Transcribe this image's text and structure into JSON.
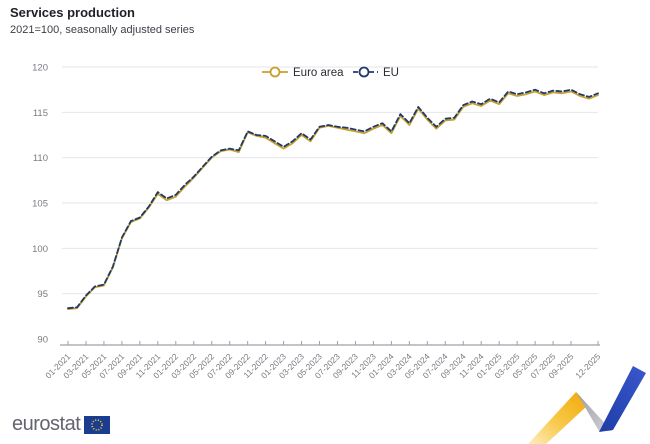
{
  "header": {
    "title": "Services production",
    "subtitle": "2021=100, seasonally adjusted series"
  },
  "footer": {
    "logo_text": "eurostat",
    "flag_color": "#1b3d91",
    "star_color": "#ffd617"
  },
  "colors": {
    "euro_area_line": "#c7a12b",
    "eu_line": "#223a6a",
    "gridline": "#e4e5eb",
    "axis": "#9ca1a9",
    "tick_label": "#7b7b83",
    "legend_text": "#2b2b33"
  },
  "chart_data": {
    "type": "line",
    "title": "Services production",
    "subtitle": "2021=100, seasonally adjusted series",
    "xlabel": "",
    "ylabel": "",
    "ylim": [
      90,
      120
    ],
    "y_ticks": [
      90,
      95,
      100,
      105,
      110,
      115,
      120
    ],
    "grid": true,
    "legend_position": "top-center",
    "x": [
      "01-2021",
      "02-2021",
      "03-2021",
      "04-2021",
      "05-2021",
      "06-2021",
      "07-2021",
      "08-2021",
      "09-2021",
      "10-2021",
      "11-2021",
      "12-2021",
      "01-2022",
      "02-2022",
      "03-2022",
      "04-2022",
      "05-2022",
      "06-2022",
      "07-2022",
      "08-2022",
      "09-2022",
      "10-2022",
      "11-2022",
      "12-2022",
      "01-2023",
      "02-2023",
      "03-2023",
      "04-2023",
      "05-2023",
      "06-2023",
      "07-2023",
      "08-2023",
      "09-2023",
      "10-2023",
      "11-2023",
      "12-2023",
      "01-2024",
      "02-2024",
      "03-2024",
      "04-2024",
      "05-2024",
      "06-2024",
      "07-2024",
      "08-2024",
      "09-2024",
      "10-2024",
      "11-2024",
      "12-2024",
      "01-2025",
      "02-2025",
      "03-2025",
      "04-2025",
      "05-2025",
      "06-2025",
      "07-2025",
      "08-2025",
      "09-2025",
      "10-2025",
      "11-2025",
      "12-2025"
    ],
    "x_tick_labels": [
      "01-2021",
      "03-2021",
      "05-2021",
      "07-2021",
      "09-2021",
      "11-2021",
      "01-2022",
      "03-2022",
      "05-2022",
      "07-2022",
      "09-2022",
      "11-2022",
      "01-2023",
      "03-2023",
      "05-2023",
      "07-2023",
      "09-2023",
      "11-2023",
      "01-2024",
      "03-2024",
      "05-2024",
      "07-2024",
      "09-2024",
      "11-2024",
      "01-2025",
      "03-2025",
      "05-2025",
      "07-2025",
      "09-2025",
      "12-2025"
    ],
    "series": [
      {
        "name": "Euro area",
        "color": "#c7a12b",
        "style": "solid",
        "values": [
          93.3,
          93.4,
          94.7,
          95.7,
          95.9,
          97.9,
          101.1,
          102.9,
          103.3,
          104.5,
          106.0,
          105.3,
          105.7,
          106.8,
          107.8,
          108.9,
          110.0,
          110.7,
          110.9,
          110.6,
          112.8,
          112.4,
          112.2,
          111.6,
          111.0,
          111.6,
          112.5,
          111.8,
          113.3,
          113.5,
          113.3,
          113.1,
          112.9,
          112.7,
          113.2,
          113.6,
          112.7,
          114.6,
          113.6,
          115.4,
          114.2,
          113.2,
          114.1,
          114.2,
          115.6,
          116.0,
          115.7,
          116.3,
          115.9,
          117.1,
          116.8,
          117.0,
          117.3,
          116.9,
          117.2,
          117.1,
          117.3,
          116.8,
          116.5,
          116.9
        ]
      },
      {
        "name": "EU",
        "color": "#223a6a",
        "style": "dashed",
        "values": [
          93.4,
          93.5,
          94.8,
          95.8,
          96.0,
          98.0,
          101.2,
          103.0,
          103.4,
          104.6,
          106.2,
          105.5,
          105.9,
          107.0,
          107.9,
          109.0,
          110.1,
          110.8,
          111.0,
          110.8,
          112.9,
          112.5,
          112.4,
          111.8,
          111.2,
          111.8,
          112.7,
          112.0,
          113.4,
          113.6,
          113.4,
          113.3,
          113.1,
          112.9,
          113.4,
          113.8,
          112.9,
          114.8,
          113.8,
          115.6,
          114.4,
          113.4,
          114.3,
          114.4,
          115.8,
          116.2,
          115.9,
          116.5,
          116.1,
          117.3,
          117.0,
          117.2,
          117.5,
          117.1,
          117.4,
          117.3,
          117.5,
          117.0,
          116.7,
          117.1
        ]
      }
    ]
  }
}
